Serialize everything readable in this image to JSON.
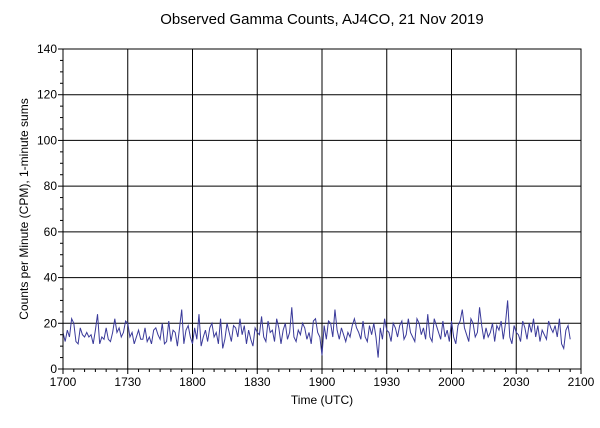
{
  "chart_data": {
    "type": "line",
    "title": "Observed Gamma Counts, AJ4CO, 21 Nov 2019",
    "xlabel": "Time (UTC)",
    "ylabel": "Counts per Minute (CPM), 1-minute sums",
    "x_ticks": [
      "1700",
      "1730",
      "1800",
      "1830",
      "1900",
      "1930",
      "2000",
      "2030",
      "2100"
    ],
    "y_ticks": [
      "0",
      "20",
      "40",
      "60",
      "80",
      "100",
      "120",
      "140"
    ],
    "ylim": [
      0,
      140
    ],
    "xlim": [
      "17:00",
      "21:00"
    ],
    "grid": true,
    "line_color": "#3a3a9a",
    "series": [
      {
        "x_start": "17:00",
        "x_step_minutes": 1,
        "values": [
          16,
          12,
          17,
          14,
          22,
          20,
          12,
          11,
          18,
          15,
          14,
          16,
          14,
          15,
          11,
          17,
          24,
          11,
          14,
          13,
          18,
          13,
          12,
          16,
          22,
          16,
          18,
          14,
          16,
          21,
          20,
          14,
          16,
          11,
          14,
          17,
          13,
          13,
          18,
          12,
          14,
          11,
          17,
          18,
          15,
          13,
          20,
          11,
          12,
          21,
          12,
          17,
          16,
          10,
          18,
          26,
          11,
          17,
          19,
          14,
          11,
          18,
          13,
          24,
          10,
          14,
          17,
          12,
          18,
          20,
          14,
          16,
          11,
          22,
          9,
          13,
          20,
          16,
          12,
          19,
          18,
          14,
          22,
          15,
          19,
          11,
          17,
          13,
          10,
          18,
          16,
          15,
          23,
          14,
          12,
          21,
          16,
          17,
          12,
          22,
          18,
          11,
          17,
          20,
          13,
          16,
          27,
          14,
          12,
          17,
          15,
          20,
          18,
          13,
          16,
          11,
          21,
          22,
          16,
          14,
          6,
          19,
          13,
          21,
          20,
          14,
          26,
          17,
          13,
          18,
          15,
          12,
          16,
          14,
          19,
          22,
          18,
          16,
          13,
          21,
          14,
          12,
          19,
          15,
          20,
          14,
          5,
          18,
          13,
          22,
          17,
          16,
          12,
          20,
          18,
          14,
          19,
          21,
          13,
          15,
          22,
          16,
          14,
          12,
          22,
          20,
          15,
          18,
          13,
          24,
          14,
          12,
          22,
          19,
          16,
          13,
          21,
          14,
          17,
          12,
          21,
          14,
          11,
          19,
          21,
          26,
          18,
          15,
          12,
          22,
          20,
          14,
          16,
          27,
          19,
          13,
          18,
          14,
          16,
          20,
          12,
          19,
          17,
          21,
          13,
          20,
          30,
          14,
          11,
          19,
          16,
          15,
          12,
          21,
          18,
          13,
          20,
          16,
          22,
          14,
          19,
          12,
          17,
          15,
          13,
          21,
          18,
          16,
          19,
          14,
          22,
          11,
          9,
          17,
          19,
          13
        ]
      }
    ]
  }
}
